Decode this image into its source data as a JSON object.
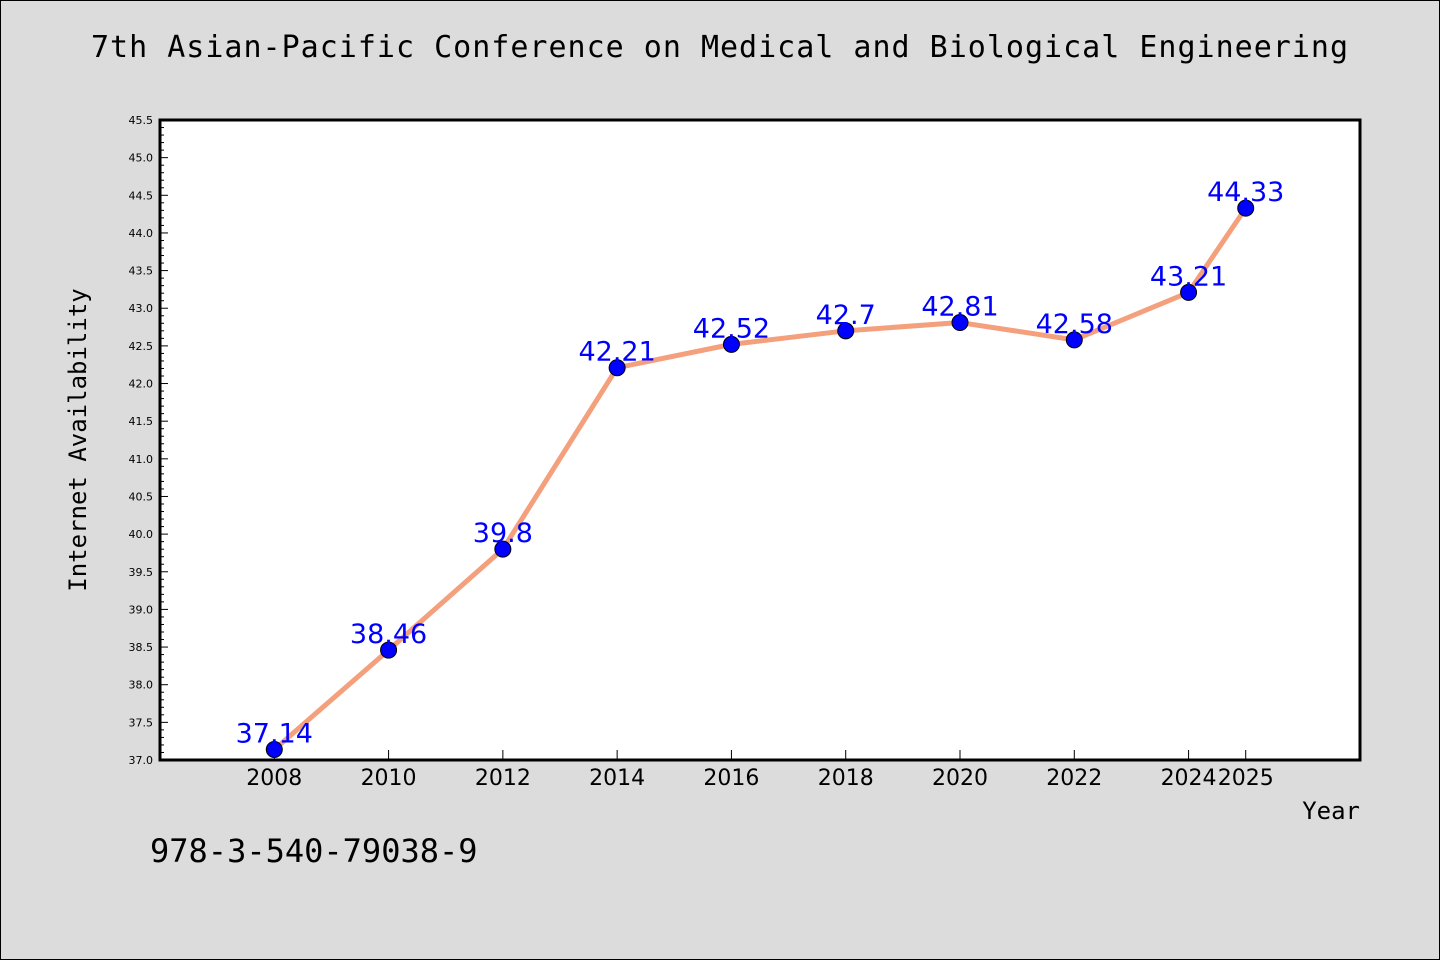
{
  "chart_data": {
    "type": "line",
    "title": "7th Asian-Pacific Conference on Medical and Biological Engineering",
    "xlabel": "Year",
    "ylabel": "Internet Availability",
    "x": [
      "2008",
      "2010",
      "2012",
      "2014",
      "2016",
      "2018",
      "2020",
      "2022",
      "2024",
      "2025"
    ],
    "series": [
      {
        "values": [
          37.14,
          38.46,
          39.8,
          42.21,
          42.52,
          42.7,
          42.81,
          42.58,
          43.21,
          44.33
        ],
        "labels": [
          "37.14",
          "38.46",
          "39.8",
          "42.21",
          "42.52",
          "42.7",
          "42.81",
          "42.58",
          "43.21",
          "44.33"
        ],
        "line_color": "#f4a07c",
        "marker_color": "#0000ff",
        "label_color": "#0000ff"
      }
    ],
    "ylim": [
      37.0,
      45.5
    ],
    "yticks": [
      "37.0",
      "37.5",
      "38.0",
      "38.5",
      "39.0",
      "39.5",
      "40.0",
      "40.5",
      "41.0",
      "41.5",
      "42.0",
      "42.5",
      "43.0",
      "43.5",
      "44.0",
      "44.5",
      "45.0",
      "45.5"
    ],
    "grid": false,
    "legend": "none"
  },
  "footer": {
    "isbn": "978-3-540-79038-9"
  }
}
